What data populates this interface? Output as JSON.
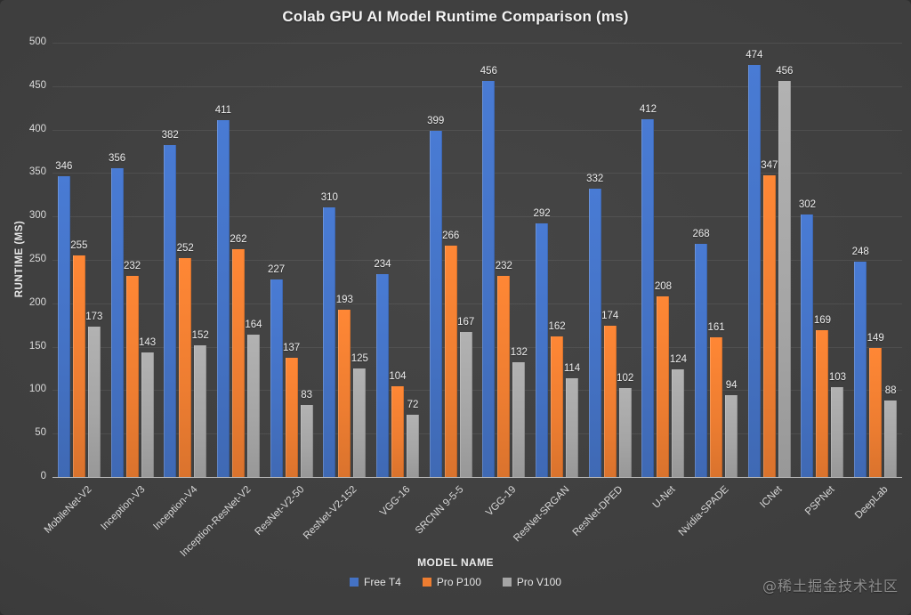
{
  "watermark": "@稀土掘金技术社区",
  "chart_data": {
    "type": "bar",
    "title": "Colab GPU AI Model Runtime Comparison (ms)",
    "xlabel": "MODEL NAME",
    "ylabel": "RUNTIME (MS)",
    "ylim": [
      0,
      500
    ],
    "ytick_step": 50,
    "yticks": [
      0,
      50,
      100,
      150,
      200,
      250,
      300,
      350,
      400,
      450,
      500
    ],
    "grid": true,
    "legend_position": "bottom",
    "background_color": "#3d3d3d",
    "categories": [
      "MobileNet-V2",
      "Inception-V3",
      "Inception-V4",
      "Inception-ResNet-V2",
      "ResNet-V2-50",
      "ResNet-V2-152",
      "VGG-16",
      "SRCNN 9-5-5",
      "VGG-19",
      "ResNet-SRGAN",
      "ResNet-DPED",
      "U-Net",
      "Nvidia-SPADE",
      "ICNet",
      "PSPNet",
      "DeepLab"
    ],
    "series": [
      {
        "name": "Free T4",
        "color": "#4472C4",
        "values": [
          346,
          356,
          382,
          411,
          227,
          310,
          234,
          399,
          456,
          292,
          332,
          412,
          268,
          474,
          302,
          248
        ]
      },
      {
        "name": "Pro P100",
        "color": "#ED7D31",
        "values": [
          255,
          232,
          252,
          262,
          137,
          193,
          104,
          266,
          232,
          162,
          174,
          208,
          161,
          347,
          169,
          149
        ]
      },
      {
        "name": "Pro V100",
        "color": "#A5A5A5",
        "values": [
          173,
          143,
          152,
          164,
          83,
          125,
          72,
          167,
          132,
          114,
          102,
          124,
          94,
          456,
          103,
          88
        ]
      }
    ]
  }
}
